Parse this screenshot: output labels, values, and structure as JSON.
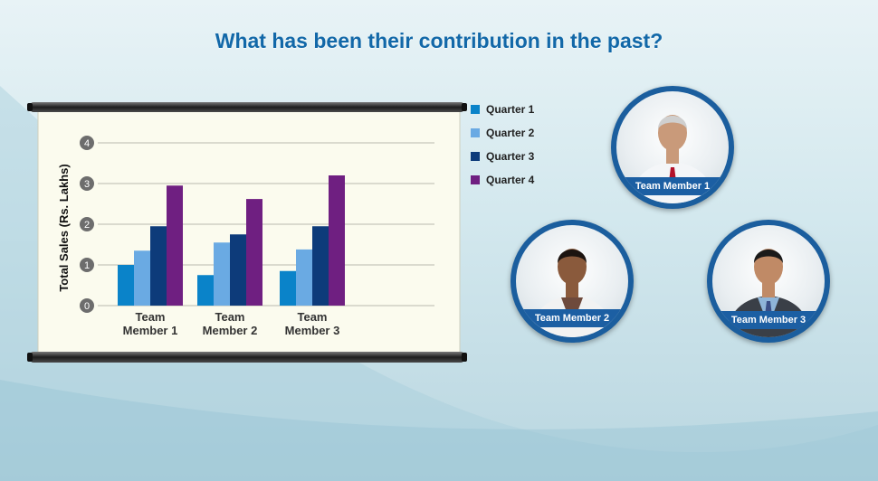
{
  "title": "What has been their contribution in the past?",
  "chart_data": {
    "type": "bar",
    "categories": [
      "Team Member 1",
      "Team Member 2",
      "Team Member 3"
    ],
    "category_lines": [
      [
        "Team",
        "Member 1"
      ],
      [
        "Team",
        "Member 2"
      ],
      [
        "Team",
        "Member 3"
      ]
    ],
    "series": [
      {
        "name": "Quarter 1",
        "color": "#0a83c9",
        "values": [
          1.0,
          0.75,
          0.85
        ]
      },
      {
        "name": "Quarter 2",
        "color": "#6aaae3",
        "values": [
          1.35,
          1.55,
          1.38
        ]
      },
      {
        "name": "Quarter 3",
        "color": "#0d3b7a",
        "values": [
          1.95,
          1.75,
          1.95
        ]
      },
      {
        "name": "Quarter 4",
        "color": "#6f1f81",
        "values": [
          2.95,
          2.62,
          3.2
        ]
      }
    ],
    "ylabel": "Total Sales (Rs. Lakhs)",
    "ylim": [
      0,
      4
    ],
    "yticks": [
      "0",
      "1",
      "2",
      "3",
      "4"
    ],
    "grid": true,
    "legend_position": "right"
  },
  "members": [
    {
      "label": "Team Member 1",
      "shirt": "#f4f6f8",
      "jacket": "#f4f6f8",
      "tie": "#b3122a",
      "skin": "#c99a7a",
      "hair": "#cfcfcf"
    },
    {
      "label": "Team Member 2",
      "shirt": "#6e4a3c",
      "jacket": "#f2f2f2",
      "tie": "",
      "skin": "#8a5a3c",
      "hair": "#1c1410"
    },
    {
      "label": "Team Member 3",
      "shirt": "#8fb5d8",
      "jacket": "#3a3f47",
      "tie": "#3b4f86",
      "skin": "#c08a66",
      "hair": "#1a1a1a"
    }
  ]
}
